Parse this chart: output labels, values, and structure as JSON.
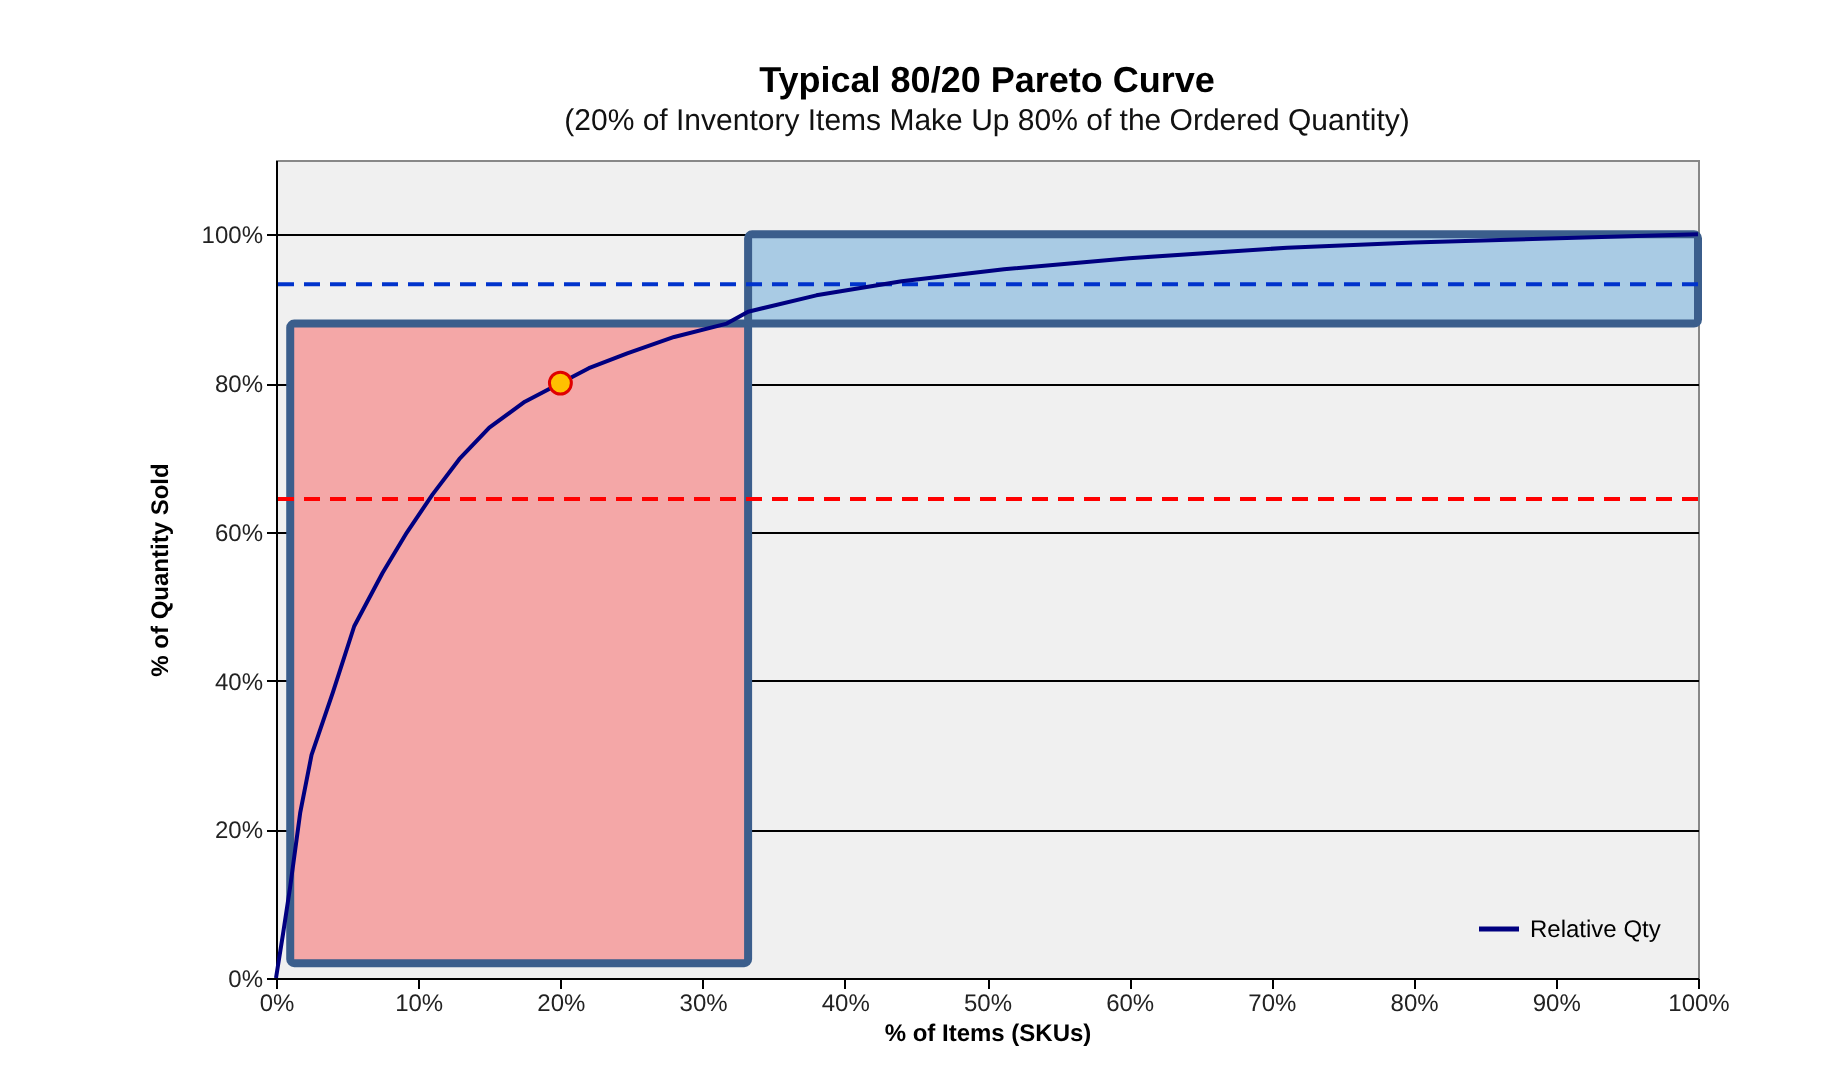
{
  "chart_data": {
    "type": "line",
    "title": "Typical 80/20 Pareto Curve",
    "subtitle": "(20% of Inventory Items Make Up 80% of the Ordered Quantity)",
    "xlabel": "% of Items  (SKUs)",
    "ylabel": "% of Quantity Sold",
    "x": [
      0,
      0.5,
      1,
      1.7,
      2.5,
      4,
      5.5,
      7.5,
      9.2,
      11,
      12.9,
      15,
      17.5,
      22,
      24.7,
      28,
      31.7,
      33.2,
      38,
      44,
      51.2,
      60,
      71.1,
      80,
      92.6,
      100
    ],
    "series": [
      {
        "name": "Relative Qty",
        "color": "#000080",
        "values": [
          0,
          6,
          12.3,
          22.2,
          30,
          38.4,
          47.3,
          54.5,
          59.9,
          65,
          69.8,
          74,
          77.5,
          82,
          84,
          86.2,
          88,
          89.6,
          91.8,
          93.7,
          95.3,
          96.8,
          98.2,
          98.9,
          99.6,
          100
        ]
      },
      {
        "type": "scatter",
        "color": "#ffc000",
        "marker": "circle",
        "x": [
          20
        ],
        "values": [
          80
        ]
      }
    ],
    "xlim": [
      0,
      100
    ],
    "ylim": [
      0,
      110
    ],
    "xticks": [
      {
        "value": 0,
        "label": "0%"
      },
      {
        "value": 10,
        "label": "10%"
      },
      {
        "value": 20,
        "label": "20%"
      },
      {
        "value": 30,
        "label": "30%"
      },
      {
        "value": 40,
        "label": "40%"
      },
      {
        "value": 50,
        "label": "50%"
      },
      {
        "value": 60,
        "label": "60%"
      },
      {
        "value": 70,
        "label": "70%"
      },
      {
        "value": 80,
        "label": "80%"
      },
      {
        "value": 90,
        "label": "90%"
      },
      {
        "value": 100,
        "label": "100%"
      }
    ],
    "yticks": [
      {
        "value": 0,
        "label": "0%"
      },
      {
        "value": 20,
        "label": "20%"
      },
      {
        "value": 40,
        "label": "40%"
      },
      {
        "value": 60,
        "label": "60%"
      },
      {
        "value": 80,
        "label": "80%"
      },
      {
        "value": 100,
        "label": "100%"
      }
    ],
    "grid": "y",
    "legend": "bottom right",
    "line_style": "solid",
    "bands": [
      {
        "axis": "x",
        "from": 1,
        "to": 33.2,
        "color": "#f4a7a7"
      },
      {
        "axis": "y",
        "from": 88,
        "to": 100,
        "color": "#a9cbe4"
      }
    ],
    "ref_lines": [
      {
        "axis": "y",
        "value": 64.4,
        "color": "#ff0000",
        "line_style": "dashed"
      },
      {
        "axis": "y",
        "value": 93.3,
        "color": "#0033cc",
        "line_style": "dashed"
      }
    ]
  }
}
